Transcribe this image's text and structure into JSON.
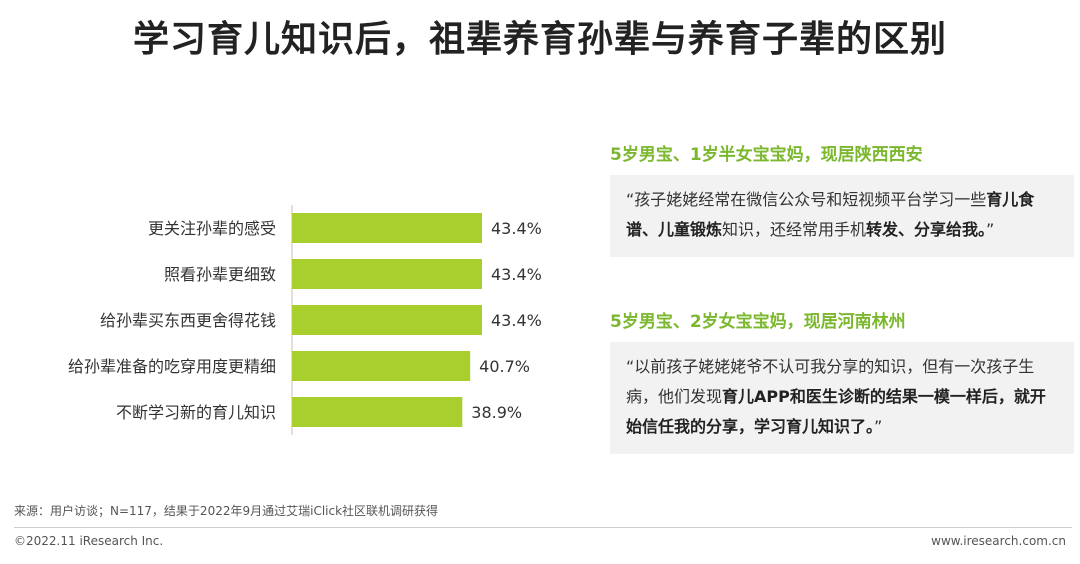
{
  "title": "学习育儿知识后，祖辈养育孙辈与养育子辈的区别",
  "chart_data": {
    "type": "bar",
    "orientation": "horizontal",
    "categories": [
      "更关注孙辈的感受",
      "照看孙辈更细致",
      "给孙辈买东西更舍得花钱",
      "给孙辈准备的吃穿用度更精细",
      "不断学习新的育儿知识"
    ],
    "values": [
      43.4,
      43.4,
      43.4,
      40.7,
      38.9
    ],
    "value_labels": [
      "43.4%",
      "43.4%",
      "43.4%",
      "40.7%",
      "38.9%"
    ],
    "xlim": [
      0,
      50
    ],
    "grid": false,
    "legend": "none",
    "bar_color": "#a8cf2e"
  },
  "quotes": [
    {
      "head": "5岁男宝、1岁半女宝宝妈，现居陕西西安",
      "segments": [
        {
          "text": "“孩子姥姥经常在微信公众号和短视频平台学习一些",
          "bold": false
        },
        {
          "text": "育儿食谱、儿童锻炼",
          "bold": true
        },
        {
          "text": "知识，还经常用手机",
          "bold": false
        },
        {
          "text": "转发、分享给我。",
          "bold": true
        },
        {
          "text": "”",
          "bold": false
        }
      ]
    },
    {
      "head": "5岁男宝、2岁女宝宝妈，现居河南林州",
      "segments": [
        {
          "text": "“以前孩子姥姥姥爷不认可我分享的知识，但有一次孩子生病，他们发现",
          "bold": false
        },
        {
          "text": "育儿APP和医生诊断的结果一模一样后，就开始信任我的分享，学习育儿知识了。",
          "bold": true
        },
        {
          "text": "”",
          "bold": false
        }
      ]
    }
  ],
  "footer": {
    "source": "来源：用户访谈；N=117，结果于2022年9月通过艾瑞iClick社区联机调研获得",
    "copyright": "©2022.11 iResearch Inc.",
    "website": "www.iresearch.com.cn"
  }
}
